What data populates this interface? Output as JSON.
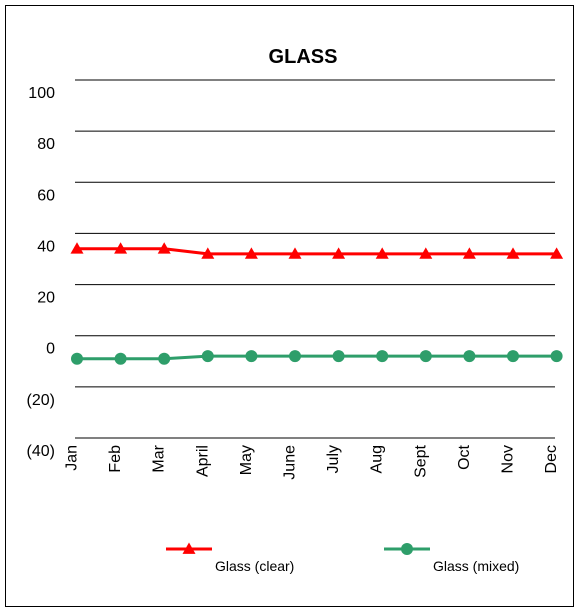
{
  "chart_data": {
    "type": "line",
    "title": "GLASS",
    "categories": [
      "Jan",
      "Feb",
      "Mar",
      "April",
      "May",
      "June",
      "July",
      "Aug",
      "Sept",
      "Oct",
      "Nov",
      "Dec"
    ],
    "y_ticks": [
      "(40)",
      "(20)",
      "0",
      "20",
      "40",
      "60",
      "80",
      "100"
    ],
    "ylim": [
      -40,
      100
    ],
    "grid": true,
    "legend_position": "bottom",
    "series": [
      {
        "name": "Glass (clear)",
        "color": "#ff0000",
        "marker": "triangle",
        "values": [
          34,
          34,
          34,
          32,
          32,
          32,
          32,
          32,
          32,
          32,
          32,
          32
        ]
      },
      {
        "name": "Glass (mixed)",
        "color": "#2e9e6a",
        "marker": "circle",
        "values": [
          -9,
          -9,
          -9,
          -8,
          -8,
          -8,
          -8,
          -8,
          -8,
          -8,
          -8,
          -8
        ]
      }
    ]
  }
}
